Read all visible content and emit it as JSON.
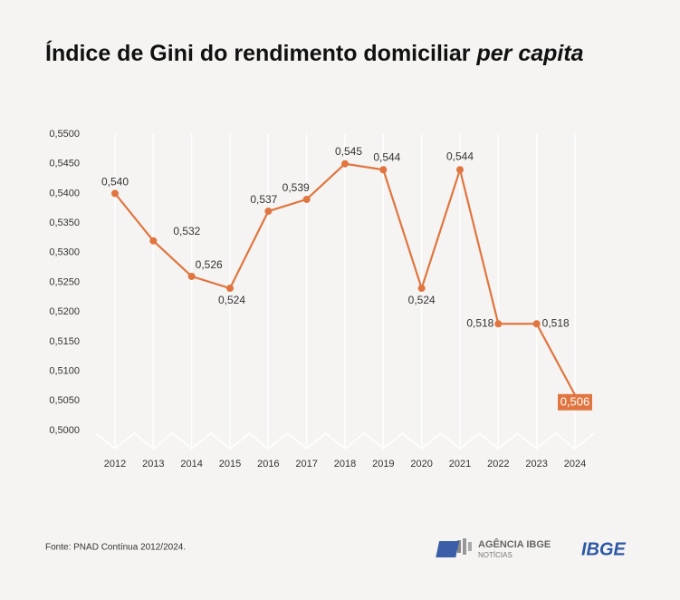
{
  "chart_data": {
    "type": "line",
    "title": "Índice de Gini do rendimento domiciliar",
    "title_emphasis": "per capita",
    "categories": [
      "2012",
      "2013",
      "2014",
      "2015",
      "2016",
      "2017",
      "2018",
      "2019",
      "2020",
      "2021",
      "2022",
      "2023",
      "2024"
    ],
    "values": [
      0.54,
      0.532,
      0.526,
      0.524,
      0.537,
      0.539,
      0.545,
      0.544,
      0.524,
      0.544,
      0.518,
      0.518,
      0.506
    ],
    "value_labels": [
      "0,540",
      "0,532",
      "0,526",
      "0,524",
      "0,537",
      "0,539",
      "0,545",
      "0,544",
      "0,524",
      "0,544",
      "0,518",
      "0,518",
      "0,506"
    ],
    "color": "#e07540",
    "ylim": [
      0.5,
      0.55
    ],
    "yticks": [
      {
        "value": 0.55,
        "label": "0,5500"
      },
      {
        "value": 0.545,
        "label": "0,5450"
      },
      {
        "value": 0.54,
        "label": "0,5400"
      },
      {
        "value": 0.535,
        "label": "0,5350"
      },
      {
        "value": 0.53,
        "label": "0,5300"
      },
      {
        "value": 0.525,
        "label": "0,5250"
      },
      {
        "value": 0.52,
        "label": "0,5200"
      },
      {
        "value": 0.515,
        "label": "0,5150"
      },
      {
        "value": 0.51,
        "label": "0,5100"
      },
      {
        "value": 0.505,
        "label": "0,5050"
      },
      {
        "value": 0.5,
        "label": "0,5000"
      }
    ],
    "grid": true
  },
  "footer": {
    "source": "Fonte: PNAD Contínua 2012/2024.",
    "agency": "AGÊNCIA IBGE",
    "agency_sub": "NOTÍCIAS",
    "logo": "IBGE"
  }
}
